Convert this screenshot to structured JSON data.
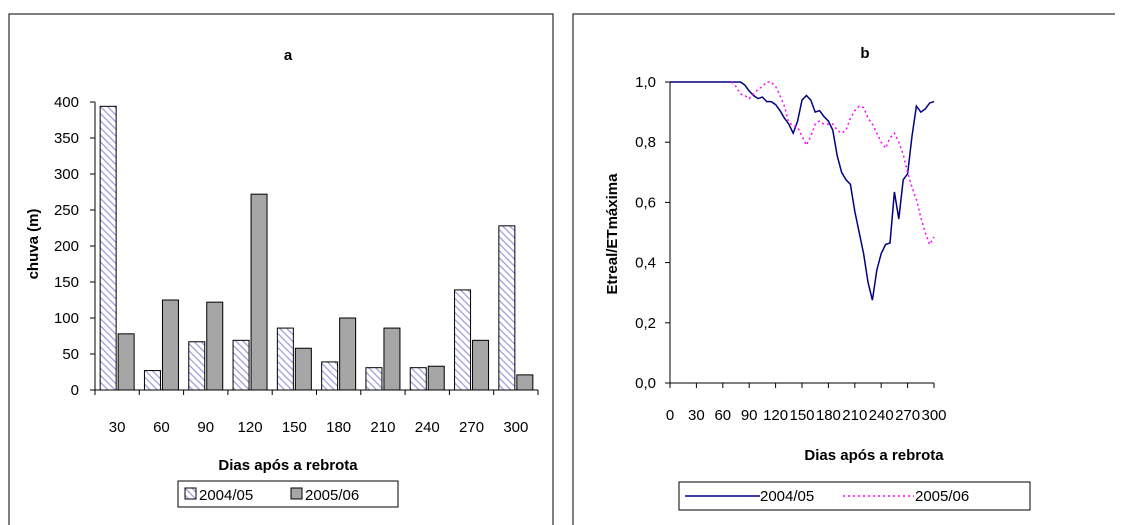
{
  "chart_data": [
    {
      "id": "a",
      "type": "bar",
      "title": "a",
      "xlabel": "Dias após a rebrota",
      "ylabel": "chuva (m)",
      "ylim": [
        0,
        400
      ],
      "yticks": [
        "0",
        "50",
        "100",
        "150",
        "200",
        "250",
        "300",
        "350",
        "400"
      ],
      "categories": [
        "30",
        "60",
        "90",
        "120",
        "150",
        "180",
        "210",
        "240",
        "270",
        "300"
      ],
      "series": [
        {
          "name": "2004/05",
          "values": [
            394,
            27,
            67,
            69,
            86,
            39,
            31,
            31,
            139,
            228
          ]
        },
        {
          "name": "2005/06",
          "values": [
            78,
            125,
            122,
            272,
            58,
            100,
            86,
            33,
            69,
            21
          ]
        }
      ],
      "legend_position": "bottom",
      "grid": false
    },
    {
      "id": "b",
      "type": "line",
      "title": "b",
      "xlabel": "Dias após a rebrota",
      "ylabel": "Etreal/ETmáxima",
      "xlim": [
        0,
        300
      ],
      "ylim": [
        0,
        1
      ],
      "xticks": [
        "0",
        "30",
        "60",
        "90",
        "120",
        "150",
        "180",
        "210",
        "240",
        "270",
        "300"
      ],
      "yticks": [
        "0,0",
        "0,2",
        "0,4",
        "0,6",
        "0,8",
        "1,0"
      ],
      "series": [
        {
          "name": "2004/05",
          "color": "#000080",
          "style": "solid",
          "x": [
            0,
            80,
            85,
            90,
            95,
            100,
            105,
            110,
            115,
            120,
            125,
            130,
            135,
            140,
            145,
            150,
            155,
            160,
            165,
            170,
            175,
            180,
            185,
            190,
            195,
            200,
            205,
            210,
            215,
            220,
            225,
            230,
            235,
            240,
            245,
            250,
            255,
            260,
            265,
            270,
            275,
            280,
            285,
            290,
            295,
            300
          ],
          "y": [
            1.0,
            1.0,
            0.99,
            0.97,
            0.955,
            0.945,
            0.95,
            0.935,
            0.935,
            0.925,
            0.905,
            0.88,
            0.86,
            0.83,
            0.87,
            0.94,
            0.955,
            0.94,
            0.9,
            0.905,
            0.885,
            0.87,
            0.84,
            0.755,
            0.7,
            0.675,
            0.66,
            0.57,
            0.5,
            0.43,
            0.335,
            0.275,
            0.375,
            0.43,
            0.46,
            0.465,
            0.635,
            0.545,
            0.675,
            0.695,
            0.82,
            0.92,
            0.9,
            0.91,
            0.93,
            0.935
          ]
        },
        {
          "name": "2005/06",
          "color": "#ff00ff",
          "style": "dotted",
          "x": [
            70,
            75,
            80,
            85,
            90,
            95,
            100,
            105,
            110,
            115,
            120,
            125,
            130,
            135,
            140,
            145,
            150,
            155,
            160,
            165,
            170,
            175,
            180,
            185,
            190,
            195,
            200,
            205,
            210,
            215,
            220,
            225,
            230,
            235,
            240,
            245,
            250,
            255,
            260,
            265,
            270,
            275,
            280,
            285,
            290,
            295,
            300
          ],
          "y": [
            1.0,
            0.985,
            0.96,
            0.955,
            0.945,
            0.96,
            0.975,
            0.985,
            1.0,
            1.0,
            0.985,
            0.955,
            0.92,
            0.865,
            0.855,
            0.85,
            0.82,
            0.79,
            0.82,
            0.86,
            0.87,
            0.86,
            0.86,
            0.86,
            0.84,
            0.83,
            0.84,
            0.88,
            0.905,
            0.92,
            0.915,
            0.88,
            0.86,
            0.83,
            0.8,
            0.78,
            0.815,
            0.83,
            0.8,
            0.76,
            0.7,
            0.65,
            0.61,
            0.55,
            0.5,
            0.46,
            0.485
          ]
        }
      ],
      "legend_position": "bottom",
      "grid": false
    }
  ]
}
